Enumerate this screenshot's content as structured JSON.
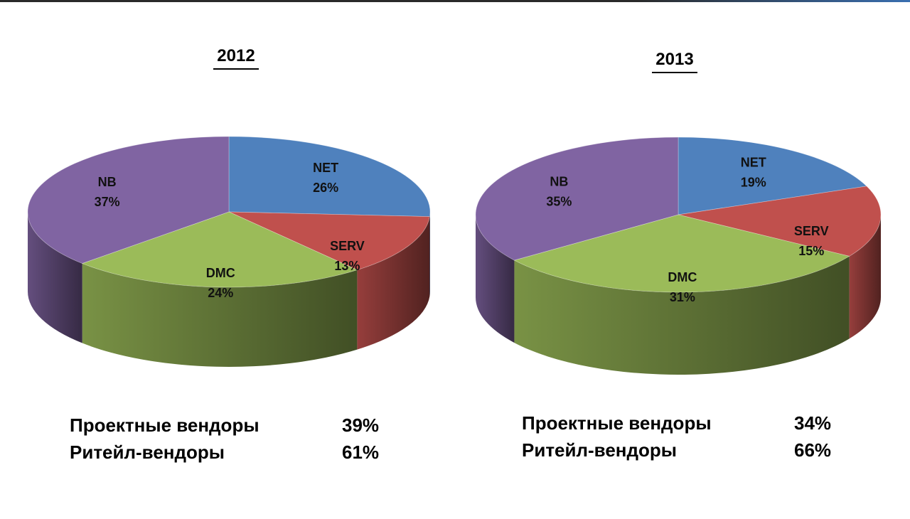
{
  "chart_data": [
    {
      "type": "pie",
      "title": "2012",
      "slices": [
        {
          "label": "NET",
          "value": 26,
          "pct_text": "26%",
          "color": "#4F81BD"
        },
        {
          "label": "SERV",
          "value": 13,
          "pct_text": "13%",
          "color": "#C0504D"
        },
        {
          "label": "DMC",
          "value": 24,
          "pct_text": "24%",
          "color": "#9BBB59"
        },
        {
          "label": "NB",
          "value": 37,
          "pct_text": "37%",
          "color": "#8064A2"
        }
      ]
    },
    {
      "type": "pie",
      "title": "2013",
      "slices": [
        {
          "label": "NET",
          "value": 19,
          "pct_text": "19%",
          "color": "#4F81BD"
        },
        {
          "label": "SERV",
          "value": 15,
          "pct_text": "15%",
          "color": "#C0504D"
        },
        {
          "label": "DMC",
          "value": 31,
          "pct_text": "31%",
          "color": "#9BBB59"
        },
        {
          "label": "NB",
          "value": 35,
          "pct_text": "35%",
          "color": "#8064A2"
        }
      ]
    }
  ],
  "summary": [
    {
      "rows": [
        {
          "label": "Проектные вендоры",
          "value": "39%"
        },
        {
          "label": "Ритейл-вендоры",
          "value": "61%"
        }
      ]
    },
    {
      "rows": [
        {
          "label": "Проектные вендоры",
          "value": "34%"
        },
        {
          "label": "Ритейл-вендоры",
          "value": "66%"
        }
      ]
    }
  ]
}
